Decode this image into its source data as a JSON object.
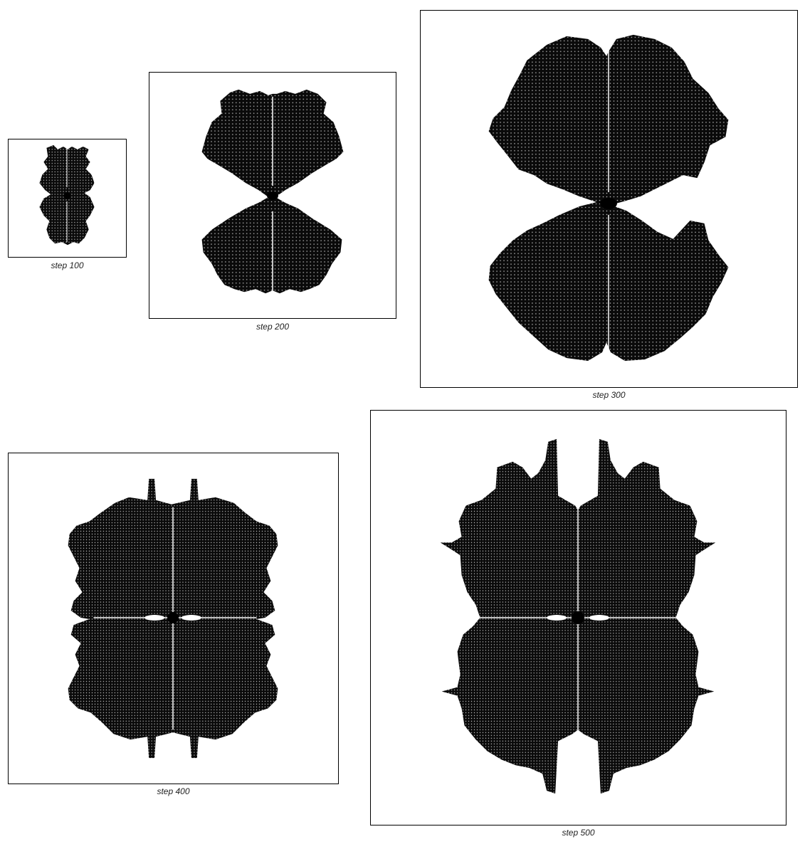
{
  "panels": [
    {
      "caption": "step 100"
    },
    {
      "caption": "step 200"
    },
    {
      "caption": "step 300"
    },
    {
      "caption": "step 400"
    },
    {
      "caption": "step 500"
    }
  ],
  "colors": {
    "ink": "#0a0a0a",
    "paper": "#ffffff",
    "frame": "#000000"
  }
}
